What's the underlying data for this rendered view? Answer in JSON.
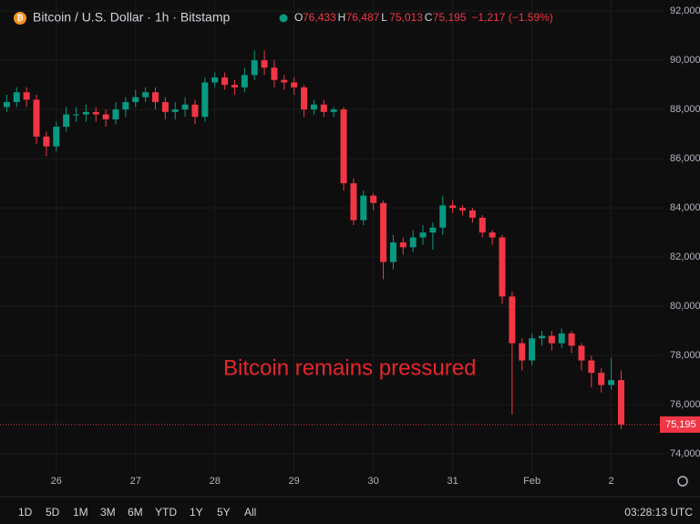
{
  "chart_data": {
    "type": "candlestick",
    "title": "Bitcoin / U.S. Dollar · 1h · Bitstamp",
    "ohlc": [
      {
        "label": "O",
        "value": "76,433"
      },
      {
        "label": "H",
        "value": "76,487"
      },
      {
        "label": "L",
        "value": "75,013"
      },
      {
        "label": "C",
        "value": "75,195"
      }
    ],
    "change": "−1,217 (−1.59%)",
    "annotation": "Bitcoin remains pressured",
    "last_price": {
      "value": 75195,
      "label": "75,195"
    },
    "up_color": "#089981",
    "down_color": "#f23645",
    "grid": true,
    "x": [
      25.375,
      25.5,
      25.625,
      25.75,
      25.875,
      26,
      26.125,
      26.25,
      26.375,
      26.5,
      26.625,
      26.75,
      26.875,
      27,
      27.125,
      27.25,
      27.375,
      27.5,
      27.625,
      27.75,
      27.875,
      28,
      28.125,
      28.25,
      28.375,
      28.5,
      28.625,
      28.75,
      28.875,
      29,
      29.125,
      29.25,
      29.375,
      29.5,
      29.625,
      29.75,
      29.875,
      30,
      30.125,
      30.25,
      30.375,
      30.5,
      30.625,
      30.75,
      30.875,
      31,
      31.125,
      31.25,
      31.375,
      31.5,
      31.625,
      31.75,
      31.875,
      32,
      32.125,
      32.25,
      32.375,
      32.5,
      32.625,
      32.75,
      32.875,
      33,
      33.125
    ],
    "open": [
      88100,
      88300,
      88700,
      88400,
      86900,
      86500,
      87300,
      87800,
      87800,
      87900,
      87800,
      87600,
      88000,
      88300,
      88500,
      88700,
      88300,
      87900,
      88000,
      88200,
      87700,
      89100,
      89300,
      89000,
      88900,
      89400,
      90000,
      89700,
      89200,
      89100,
      88900,
      88000,
      88200,
      87900,
      88000,
      85000,
      83500,
      84500,
      84200,
      81800,
      82600,
      82400,
      82800,
      83000,
      83200,
      84100,
      84000,
      83900,
      83600,
      83000,
      82800,
      80400,
      78500,
      77800,
      78700,
      78800,
      78500,
      78900,
      78400,
      77800,
      77300,
      76800,
      77000
    ],
    "high": [
      88600,
      88900,
      88900,
      88600,
      87100,
      87500,
      88100,
      88100,
      88200,
      88100,
      88000,
      88300,
      88500,
      88800,
      88900,
      88900,
      88500,
      88300,
      88500,
      88400,
      89300,
      89500,
      89500,
      89200,
      89700,
      90400,
      90400,
      90000,
      89400,
      89300,
      89000,
      88400,
      88400,
      88100,
      88100,
      85200,
      84700,
      84600,
      84300,
      82900,
      82800,
      83100,
      83300,
      83400,
      84500,
      84300,
      84100,
      84000,
      83700,
      83100,
      82900,
      80600,
      78700,
      78900,
      79000,
      79000,
      79100,
      79000,
      78500,
      78000,
      77500,
      77900,
      77400
    ],
    "low": [
      87900,
      88100,
      88100,
      86600,
      86100,
      86300,
      87100,
      87500,
      87500,
      87500,
      87300,
      87400,
      87700,
      88100,
      88300,
      88000,
      87600,
      87600,
      87700,
      87400,
      87500,
      88900,
      88800,
      88600,
      88700,
      89200,
      89400,
      88900,
      88800,
      88600,
      87700,
      87800,
      87700,
      87700,
      84700,
      83300,
      83300,
      83900,
      81100,
      81500,
      82100,
      82200,
      82500,
      82300,
      82900,
      83800,
      83700,
      83400,
      82800,
      82500,
      80100,
      75600,
      77400,
      77600,
      78400,
      78200,
      78300,
      78100,
      77400,
      76700,
      76500,
      76600,
      75013
    ],
    "close": [
      88300,
      88700,
      88400,
      86900,
      86500,
      87300,
      87800,
      87800,
      87900,
      87800,
      87600,
      88000,
      88300,
      88500,
      88700,
      88300,
      87900,
      88000,
      88200,
      87700,
      89100,
      89300,
      89000,
      88900,
      89400,
      90000,
      89700,
      89200,
      89100,
      88900,
      88000,
      88200,
      87900,
      88000,
      85000,
      83500,
      84500,
      84200,
      81800,
      82600,
      82400,
      82800,
      83000,
      83200,
      84100,
      84000,
      83900,
      83600,
      83000,
      82800,
      80400,
      78500,
      77800,
      78700,
      78800,
      78500,
      78900,
      78400,
      77800,
      77300,
      76800,
      77000,
      75195
    ],
    "xlim": [
      25.29,
      33.66
    ],
    "xticks": [
      26,
      27,
      28,
      29,
      30,
      31,
      {
        "value": 32,
        "label": "Feb"
      },
      {
        "value": 33,
        "label": "2"
      }
    ],
    "ylim": [
      73190,
      92450
    ],
    "yticks": [
      {
        "value": 74000,
        "label": "74,000"
      },
      {
        "value": 76000,
        "label": "76,000"
      },
      {
        "value": 78000,
        "label": "78,000"
      },
      {
        "value": 80000,
        "label": "80,000"
      },
      {
        "value": 82000,
        "label": "82,000"
      },
      {
        "value": 84000,
        "label": "84,000"
      },
      {
        "value": 86000,
        "label": "86,000"
      },
      {
        "value": 88000,
        "label": "88,000"
      },
      {
        "value": 90000,
        "label": "90,000"
      },
      {
        "value": 92000,
        "label": "92,000"
      }
    ],
    "ranges": [
      "1D",
      "5D",
      "1M",
      "3M",
      "6M",
      "YTD",
      "1Y",
      "5Y",
      "All"
    ],
    "clock": "03:28:13 UTC"
  }
}
